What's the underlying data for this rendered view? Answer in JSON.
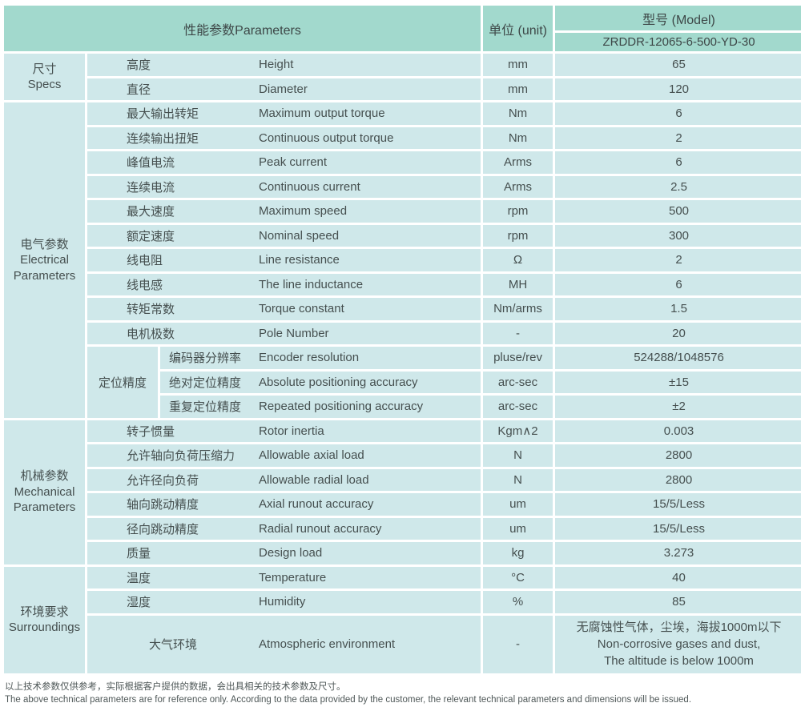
{
  "header": {
    "parameters_label": "性能参数Parameters",
    "unit_label": "单位 (unit)",
    "model_label": "型号 (Model)",
    "model_value": "ZRDDR-12065-6-500-YD-30"
  },
  "colors": {
    "header_bg": "#a2d9cd",
    "cell_bg": "#cfe8ea",
    "grid": "#ffffff",
    "text": "#454f4f"
  },
  "groups": [
    {
      "id": "specs",
      "name_cn": "尺寸",
      "name_en": "Specs",
      "rows": [
        {
          "cn": "高度",
          "en": "Height",
          "unit": "mm",
          "value": "65"
        },
        {
          "cn": "直径",
          "en": "Diameter",
          "unit": "mm",
          "value": "120"
        }
      ]
    },
    {
      "id": "electrical",
      "name_cn": "电气参数",
      "name_en": "Electrical Parameters",
      "rows": [
        {
          "cn": "最大输出转矩",
          "en": "Maximum output torque",
          "unit": "Nm",
          "value": "6"
        },
        {
          "cn": "连续输出扭矩",
          "en": "Continuous output torque",
          "unit": "Nm",
          "value": "2"
        },
        {
          "cn": "峰值电流",
          "en": "Peak current",
          "unit": "Arms",
          "value": "6"
        },
        {
          "cn": "连续电流",
          "en": "Continuous current",
          "unit": "Arms",
          "value": "2.5"
        },
        {
          "cn": "最大速度",
          "en": "Maximum speed",
          "unit": "rpm",
          "value": "500"
        },
        {
          "cn": "额定速度",
          "en": "Nominal speed",
          "unit": "rpm",
          "value": "300"
        },
        {
          "cn": "线电阻",
          "en": "Line resistance",
          "unit": "Ω",
          "value": "2"
        },
        {
          "cn": "线电感",
          "en": "The line inductance",
          "unit": "MH",
          "value": "6"
        },
        {
          "cn": "转矩常数",
          "en": "Torque constant",
          "unit": "Nm/arms",
          "value": "1.5"
        },
        {
          "cn": "电机极数",
          "en": "Pole Number",
          "unit": "-",
          "value": "20"
        },
        {
          "cn": "编码器分辨率",
          "en": "Encoder resolution",
          "unit": "pluse/rev",
          "value": "524288/1048576",
          "sub_label": "定位精度",
          "sub_span": 3
        },
        {
          "cn": "绝对定位精度",
          "en": "Absolute positioning accuracy",
          "unit": "arc-sec",
          "value": "±15",
          "in_sub": true
        },
        {
          "cn": "重复定位精度",
          "en": "Repeated positioning accuracy",
          "unit": "arc-sec",
          "value": "±2",
          "in_sub": true
        }
      ]
    },
    {
      "id": "mechanical",
      "name_cn": "机械参数",
      "name_en": "Mechanical Parameters",
      "rows": [
        {
          "cn": "转子惯量",
          "en": "Rotor inertia",
          "unit": "Kgm∧2",
          "value": "0.003"
        },
        {
          "cn": "允许轴向负荷压缩力",
          "en": "Allowable axial load",
          "unit": "N",
          "value": "2800"
        },
        {
          "cn": "允许径向负荷",
          "en": "Allowable radial load",
          "unit": "N",
          "value": "2800"
        },
        {
          "cn": "轴向跳动精度",
          "en": "Axial runout accuracy",
          "unit": "um",
          "value": "15/5/Less"
        },
        {
          "cn": "径向跳动精度",
          "en": "Radial runout accuracy",
          "unit": "um",
          "value": "15/5/Less"
        },
        {
          "cn": "质量",
          "en": "Design load",
          "unit": "kg",
          "value": "3.273"
        }
      ]
    },
    {
      "id": "surroundings",
      "name_cn": "环境要求",
      "name_en": "Surroundings",
      "rows": [
        {
          "cn": "温度",
          "en": "Temperature",
          "unit": "°C",
          "value": "40"
        },
        {
          "cn": "湿度",
          "en": "Humidity",
          "unit": "%",
          "value": "85"
        },
        {
          "cn": "大气环境",
          "en": "Atmospheric environment",
          "unit": "-",
          "tall": true,
          "center_cn": true,
          "value_lines": [
            "无腐蚀性气体，尘埃，海拔1000m以下",
            "Non-corrosive gases and dust,",
            "The altitude is below 1000m"
          ]
        }
      ]
    }
  ],
  "footnotes": [
    "以上技术参数仅供参考，实际根据客户提供的数据，会出具相关的技术参数及尺寸。",
    "The above technical parameters are for reference only. According to the data provided by the customer, the relevant technical parameters and dimensions will be issued."
  ]
}
